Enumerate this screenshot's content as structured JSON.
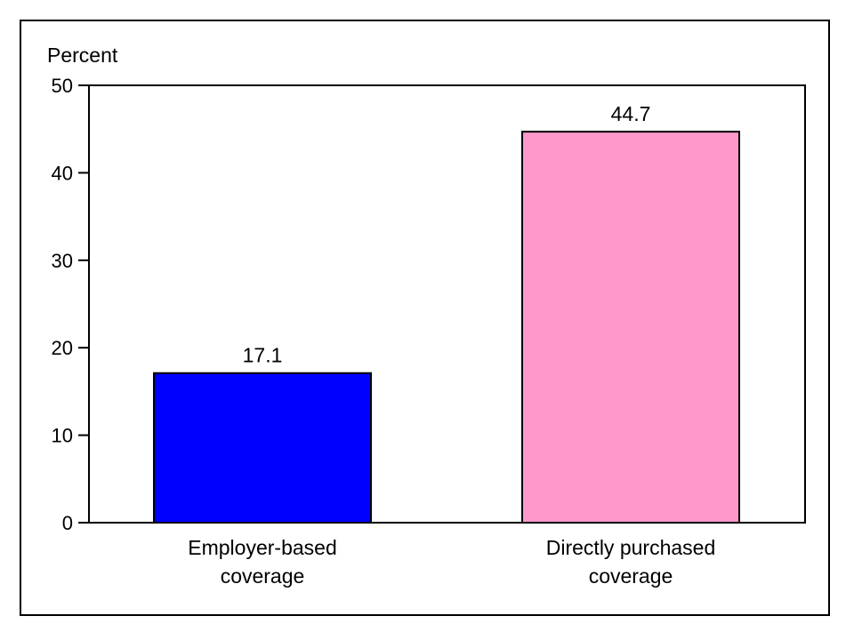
{
  "chart_data": {
    "type": "bar",
    "categories": [
      [
        "Employer-based",
        "coverage"
      ],
      [
        "Directly purchased",
        "coverage"
      ]
    ],
    "values": [
      17.1,
      44.7
    ],
    "data_labels": [
      "17.1",
      "44.7"
    ],
    "ylabel": "Percent",
    "ylim": [
      0,
      50
    ],
    "yticks": [
      0,
      10,
      20,
      30,
      40,
      50
    ],
    "grid": false,
    "bar_colors": [
      "#0000ff",
      "#ff99cc"
    ],
    "bar_stroke": "#000000"
  }
}
